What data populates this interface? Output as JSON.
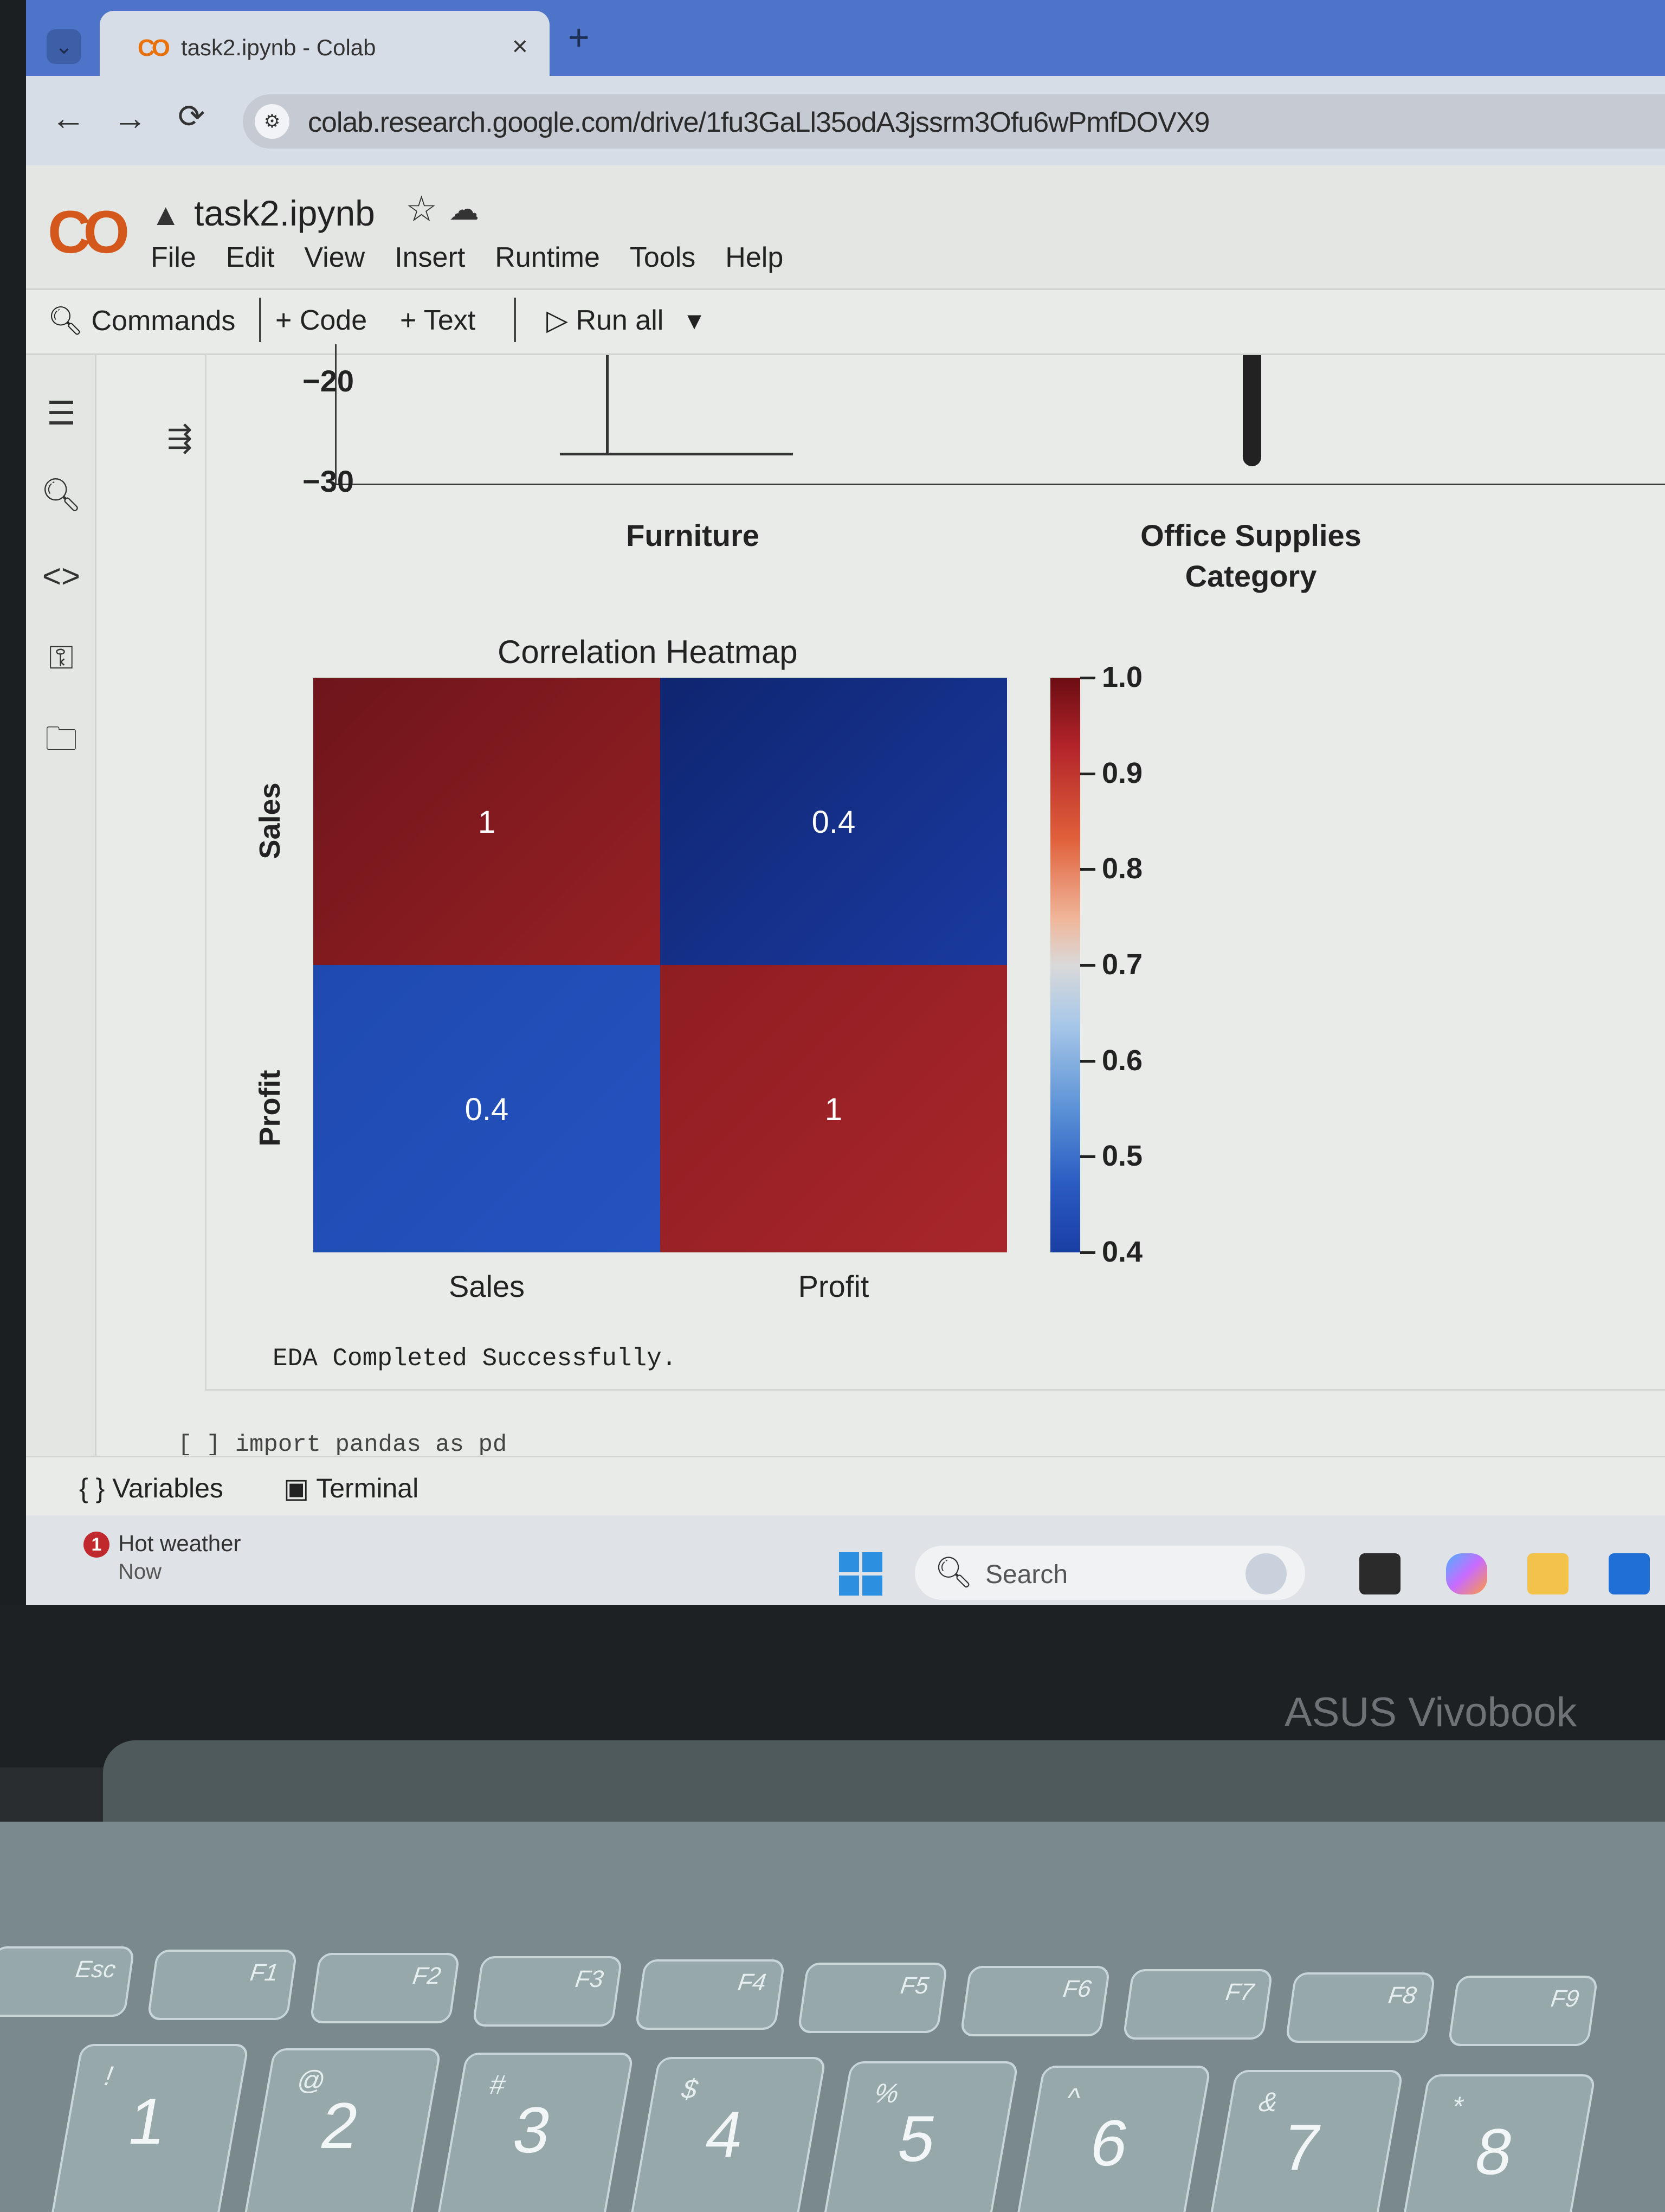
{
  "browser": {
    "tab_title": "task2.ipynb - Colab",
    "tab_logo": "CO",
    "tab_close": "×",
    "new_tab": "+",
    "url": "colab.research.google.com/drive/1fu3GaLl35odA3jssrm3Ofu6wPmfDOVX9"
  },
  "colab": {
    "logo": "CO",
    "notebook_name": "task2.ipynb",
    "menu": [
      "File",
      "Edit",
      "View",
      "Insert",
      "Runtime",
      "Tools",
      "Help"
    ],
    "toolbar": {
      "commands": "Commands",
      "code": "+ Code",
      "text": "+ Text",
      "run_all": "Run all"
    }
  },
  "boxplot_fragment": {
    "y_ticks": [
      "−20",
      "−30"
    ],
    "categories": [
      "Furniture",
      "Office Supplies"
    ],
    "xlabel": "Category"
  },
  "chart_data": {
    "type": "heatmap",
    "title": "Correlation Heatmap",
    "x_categories": [
      "Sales",
      "Profit"
    ],
    "y_categories": [
      "Sales",
      "Profit"
    ],
    "values": [
      [
        1,
        0.4
      ],
      [
        0.4,
        1
      ]
    ],
    "annotations": [
      [
        "1",
        "0.4"
      ],
      [
        "0.4",
        "1"
      ]
    ],
    "colorbar": {
      "range": [
        0.4,
        1.0
      ],
      "ticks": [
        "1.0",
        "0.9",
        "0.8",
        "0.7",
        "0.6",
        "0.5",
        "0.4"
      ],
      "colormap": "blue-white-red"
    },
    "colors": {
      "high": "#8f1d22",
      "low": "#1a3ea4"
    }
  },
  "cell_output": {
    "stdout": "EDA Completed Successfully.",
    "next_cell_code": "[ ]  import pandas as pd"
  },
  "bottom_panel": {
    "variables": "Variables",
    "terminal": "Terminal"
  },
  "taskbar": {
    "weather_badge": "1",
    "weather_title": "Hot weather",
    "weather_sub": "Now",
    "search_placeholder": "Search"
  },
  "laptop": {
    "brand": "ASUS Vivobook",
    "fn_keys": [
      "Esc",
      "F1",
      "F2",
      "F3",
      "F4",
      "F5",
      "F6",
      "F7",
      "F8",
      "F9"
    ],
    "num_keys": [
      {
        "top": "!",
        "main": "1"
      },
      {
        "top": "@",
        "main": "2"
      },
      {
        "top": "#",
        "main": "3"
      },
      {
        "top": "$",
        "main": "4"
      },
      {
        "top": "%",
        "main": "5"
      },
      {
        "top": "^",
        "main": "6"
      },
      {
        "top": "&",
        "main": "7"
      },
      {
        "top": "*",
        "main": "8"
      }
    ]
  }
}
